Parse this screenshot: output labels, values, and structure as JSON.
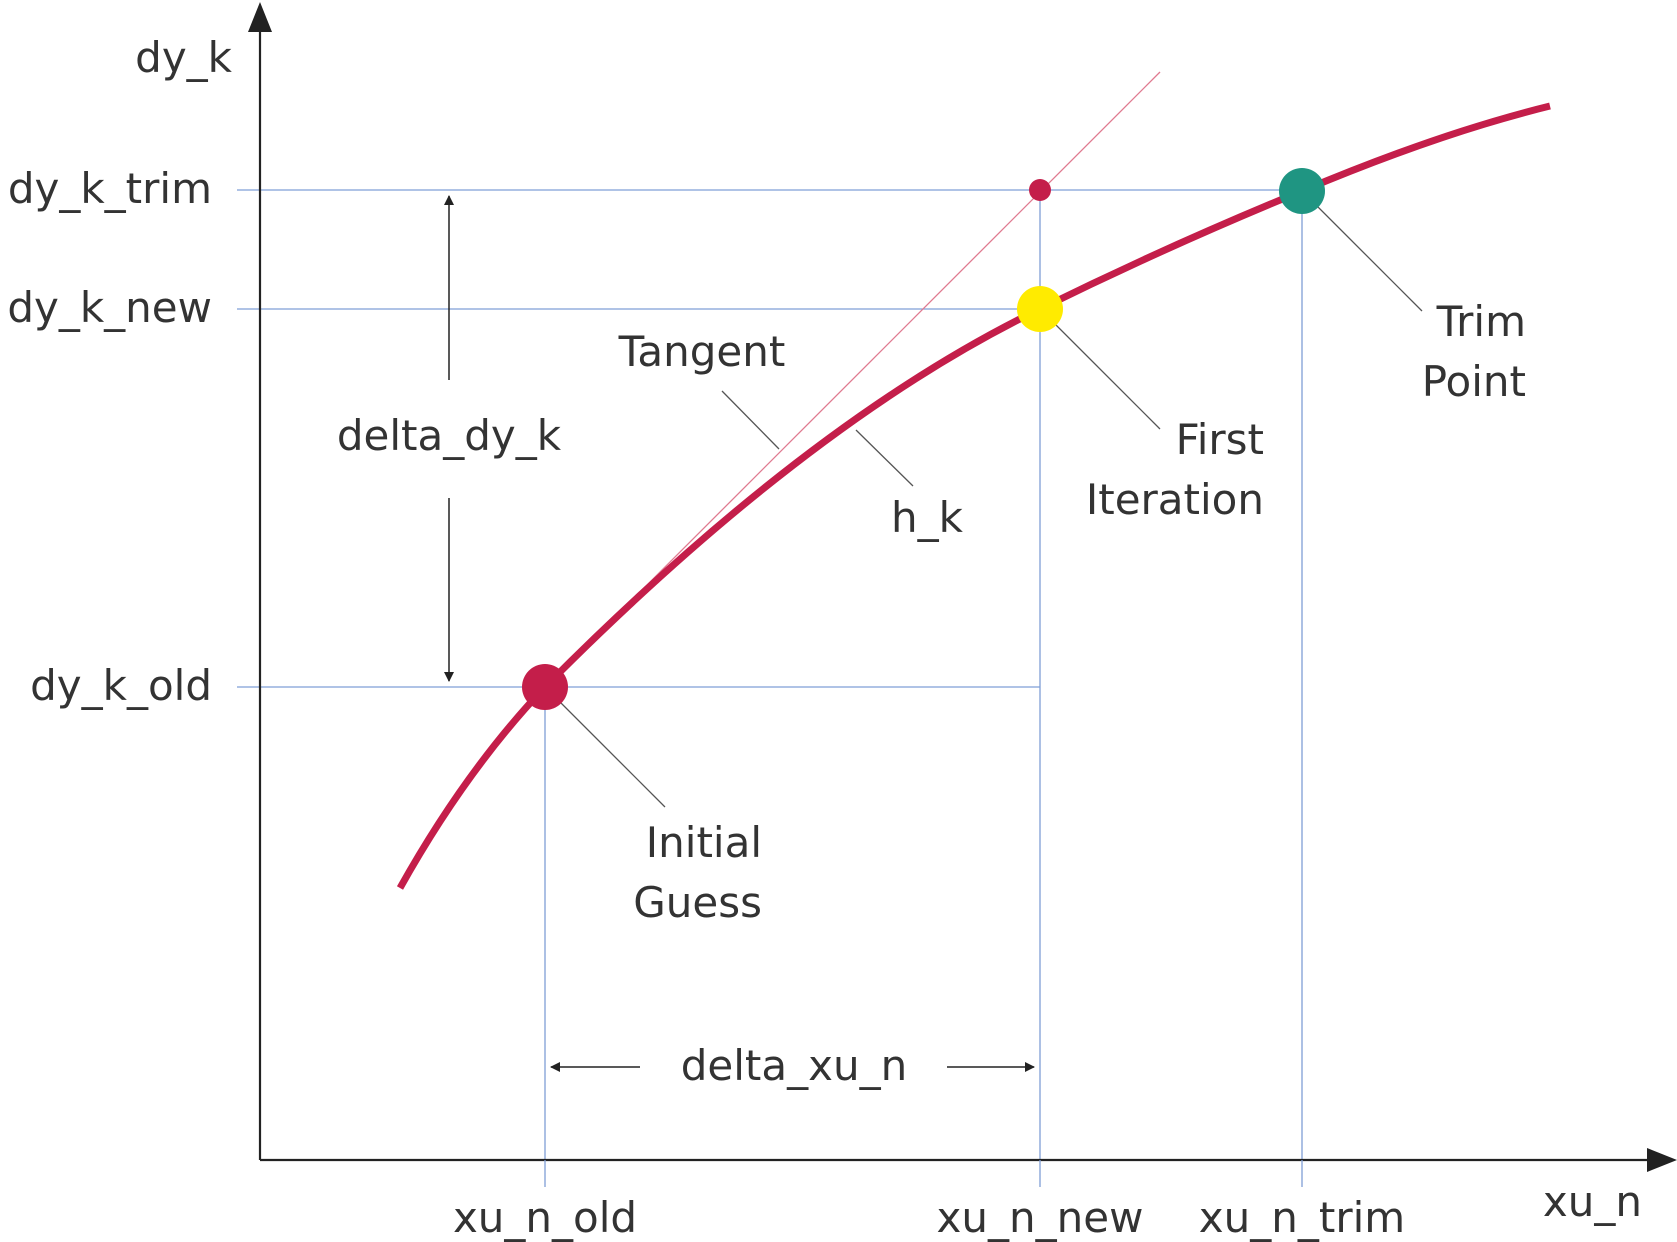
{
  "axes": {
    "y_title": "dy_k",
    "x_title": "xu_n"
  },
  "y_labels": {
    "trim": "dy_k_trim",
    "new": "dy_k_new",
    "old": "dy_k_old"
  },
  "x_labels": {
    "old": "xu_n_old",
    "new": "xu_n_new",
    "trim": "xu_n_trim"
  },
  "dimensions": {
    "vertical": "delta_dy_k",
    "horizontal": "delta_xu_n"
  },
  "callouts": {
    "tangent": "Tangent",
    "curve": "h_k",
    "initial_line1": "Initial",
    "initial_line2": "Guess",
    "first_line1": "First",
    "first_line2": "Iteration",
    "trim_line1": "Trim",
    "trim_line2": "Point"
  },
  "colors": {
    "curve": "#c41e4a",
    "initial_point": "#c41e4a",
    "first_point": "#ffeb00",
    "trim_point": "#1f9582",
    "tangent_line": "#e07a90",
    "guide_lines": "#7f9fd6"
  }
}
